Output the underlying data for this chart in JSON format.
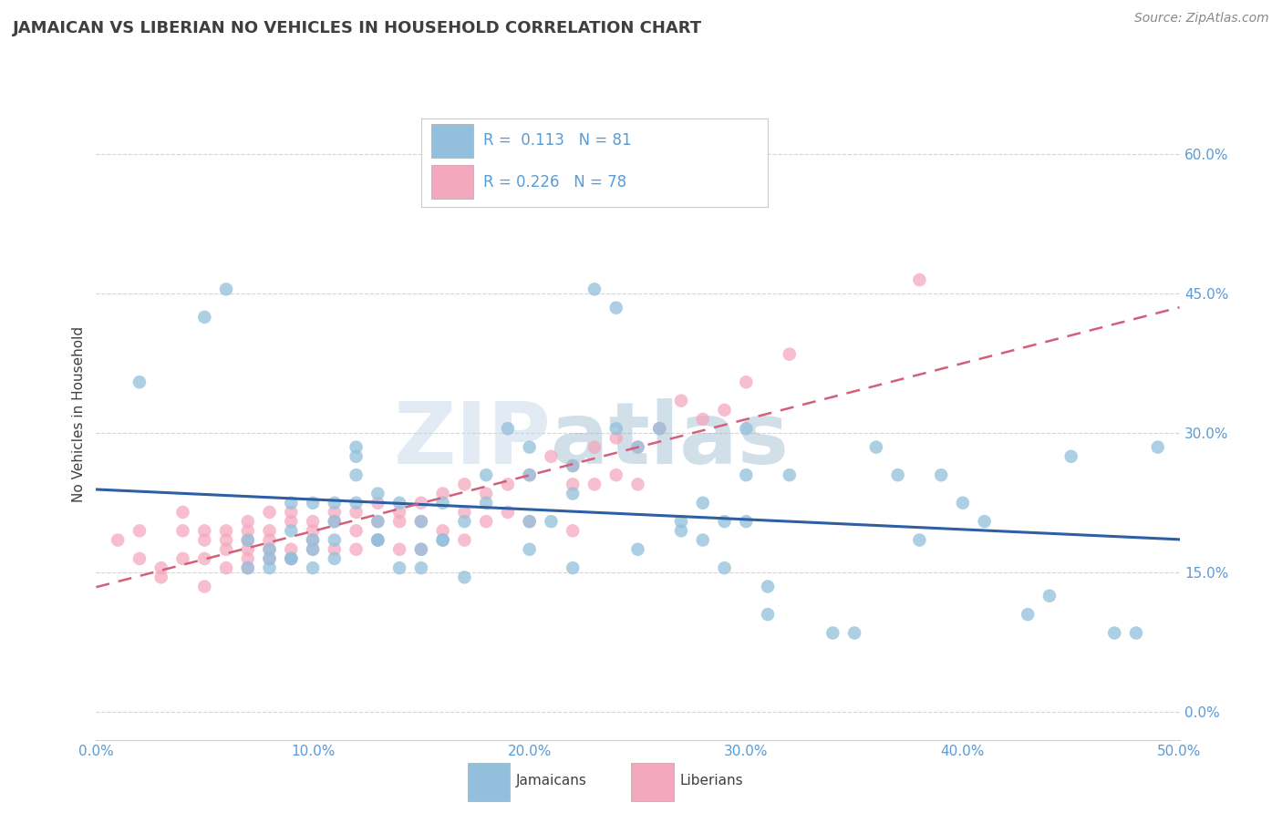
{
  "title": "JAMAICAN VS LIBERIAN NO VEHICLES IN HOUSEHOLD CORRELATION CHART",
  "source": "Source: ZipAtlas.com",
  "ylabel": "No Vehicles in Household",
  "xlim": [
    0.0,
    0.5
  ],
  "ylim": [
    -0.03,
    0.67
  ],
  "yticks": [
    0.0,
    0.15,
    0.3,
    0.45,
    0.6
  ],
  "ytick_labels": [
    "0.0%",
    "15.0%",
    "30.0%",
    "45.0%",
    "60.0%"
  ],
  "xticks": [
    0.0,
    0.1,
    0.2,
    0.3,
    0.4,
    0.5
  ],
  "xtick_labels": [
    "0.0%",
    "10.0%",
    "20.0%",
    "30.0%",
    "40.0%",
    "50.0%"
  ],
  "watermark_zip": "ZIP",
  "watermark_atlas": "atlas",
  "blue_color": "#92c0dc",
  "pink_color": "#f4a8be",
  "blue_line_color": "#2e5fa3",
  "pink_line_color": "#d45f7a",
  "title_color": "#3f3f3f",
  "axis_label_color": "#5b9bd5",
  "grid_color": "#d0d0d0",
  "jamaican_x": [
    0.02,
    0.05,
    0.07,
    0.07,
    0.08,
    0.08,
    0.09,
    0.09,
    0.09,
    0.09,
    0.1,
    0.1,
    0.1,
    0.1,
    0.11,
    0.11,
    0.11,
    0.12,
    0.12,
    0.12,
    0.12,
    0.13,
    0.13,
    0.13,
    0.14,
    0.14,
    0.15,
    0.15,
    0.15,
    0.16,
    0.16,
    0.17,
    0.17,
    0.18,
    0.18,
    0.19,
    0.2,
    0.2,
    0.2,
    0.21,
    0.22,
    0.22,
    0.23,
    0.24,
    0.24,
    0.25,
    0.26,
    0.27,
    0.28,
    0.28,
    0.29,
    0.3,
    0.3,
    0.3,
    0.31,
    0.32,
    0.34,
    0.35,
    0.36,
    0.37,
    0.38,
    0.39,
    0.4,
    0.41,
    0.43,
    0.44,
    0.45,
    0.47,
    0.48,
    0.49,
    0.06,
    0.08,
    0.11,
    0.13,
    0.16,
    0.2,
    0.22,
    0.25,
    0.27,
    0.29,
    0.31
  ],
  "jamaican_y": [
    0.355,
    0.425,
    0.185,
    0.155,
    0.155,
    0.175,
    0.165,
    0.195,
    0.225,
    0.165,
    0.185,
    0.155,
    0.175,
    0.225,
    0.185,
    0.205,
    0.225,
    0.285,
    0.255,
    0.225,
    0.275,
    0.235,
    0.185,
    0.205,
    0.155,
    0.225,
    0.205,
    0.175,
    0.155,
    0.185,
    0.225,
    0.205,
    0.145,
    0.255,
    0.225,
    0.305,
    0.255,
    0.285,
    0.205,
    0.205,
    0.235,
    0.265,
    0.455,
    0.435,
    0.305,
    0.285,
    0.305,
    0.205,
    0.225,
    0.185,
    0.205,
    0.305,
    0.255,
    0.205,
    0.105,
    0.255,
    0.085,
    0.085,
    0.285,
    0.255,
    0.185,
    0.255,
    0.225,
    0.205,
    0.105,
    0.125,
    0.275,
    0.085,
    0.085,
    0.285,
    0.455,
    0.165,
    0.165,
    0.185,
    0.185,
    0.175,
    0.155,
    0.175,
    0.195,
    0.155,
    0.135
  ],
  "liberian_x": [
    0.01,
    0.02,
    0.02,
    0.03,
    0.03,
    0.04,
    0.04,
    0.04,
    0.05,
    0.05,
    0.05,
    0.05,
    0.06,
    0.06,
    0.06,
    0.06,
    0.07,
    0.07,
    0.07,
    0.07,
    0.07,
    0.07,
    0.08,
    0.08,
    0.08,
    0.08,
    0.08,
    0.09,
    0.09,
    0.09,
    0.09,
    0.1,
    0.1,
    0.1,
    0.1,
    0.11,
    0.11,
    0.11,
    0.12,
    0.12,
    0.12,
    0.13,
    0.13,
    0.13,
    0.14,
    0.14,
    0.14,
    0.15,
    0.15,
    0.15,
    0.16,
    0.16,
    0.17,
    0.17,
    0.17,
    0.18,
    0.18,
    0.19,
    0.19,
    0.2,
    0.2,
    0.21,
    0.22,
    0.22,
    0.22,
    0.23,
    0.23,
    0.24,
    0.24,
    0.25,
    0.25,
    0.26,
    0.27,
    0.28,
    0.29,
    0.3,
    0.32,
    0.38
  ],
  "liberian_y": [
    0.185,
    0.195,
    0.165,
    0.155,
    0.145,
    0.195,
    0.215,
    0.165,
    0.185,
    0.195,
    0.165,
    0.135,
    0.195,
    0.185,
    0.175,
    0.155,
    0.205,
    0.195,
    0.185,
    0.175,
    0.165,
    0.155,
    0.195,
    0.215,
    0.185,
    0.175,
    0.165,
    0.205,
    0.215,
    0.175,
    0.165,
    0.205,
    0.195,
    0.185,
    0.175,
    0.215,
    0.205,
    0.175,
    0.215,
    0.195,
    0.175,
    0.225,
    0.205,
    0.185,
    0.215,
    0.205,
    0.175,
    0.225,
    0.205,
    0.175,
    0.235,
    0.195,
    0.245,
    0.215,
    0.185,
    0.235,
    0.205,
    0.245,
    0.215,
    0.255,
    0.205,
    0.275,
    0.265,
    0.245,
    0.195,
    0.285,
    0.245,
    0.295,
    0.255,
    0.285,
    0.245,
    0.305,
    0.335,
    0.315,
    0.325,
    0.355,
    0.385,
    0.465
  ],
  "background_color": "#ffffff"
}
